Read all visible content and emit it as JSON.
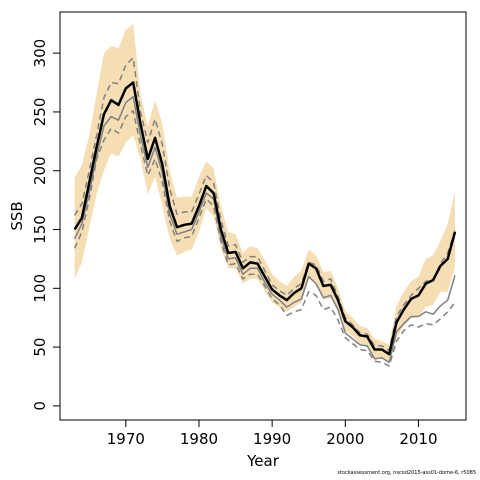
{
  "chart_data": {
    "type": "line",
    "title": "",
    "xlabel": "Year",
    "ylabel": "SSB",
    "xlim": [
      1961,
      2016.5
    ],
    "ylim": [
      -12,
      335
    ],
    "xticks": [
      1970,
      1980,
      1990,
      2000,
      2010
    ],
    "yticks": [
      0,
      50,
      100,
      150,
      200,
      250,
      300
    ],
    "grid": false,
    "colors": {
      "band": "#f5deb3",
      "estimate": "#000000",
      "dashed": "#808080",
      "solid_grey": "#808080"
    },
    "x": [
      1963,
      1964,
      1965,
      1966,
      1967,
      1968,
      1969,
      1970,
      1971,
      1972,
      1973,
      1974,
      1975,
      1976,
      1977,
      1978,
      1979,
      1980,
      1981,
      1982,
      1983,
      1984,
      1985,
      1986,
      1987,
      1988,
      1989,
      1990,
      1991,
      1992,
      1993,
      1994,
      1995,
      1996,
      1997,
      1998,
      1999,
      2000,
      2001,
      2002,
      2003,
      2004,
      2005,
      2006,
      2007,
      2008,
      2009,
      2010,
      2011,
      2012,
      2013,
      2014,
      2015
    ],
    "series": [
      {
        "role": "estimate",
        "values": [
          150,
          160,
          190,
          220,
          248,
          260,
          256,
          270,
          275,
          240,
          210,
          228,
          205,
          170,
          152,
          154,
          155,
          170,
          187,
          181,
          150,
          130,
          131,
          117,
          122,
          121,
          110,
          99,
          94,
          90,
          96,
          100,
          121,
          117,
          102,
          103,
          90,
          72,
          67,
          60,
          59,
          48,
          48,
          44,
          71,
          82,
          91,
          94,
          104,
          107,
          119,
          125,
          148
        ]
      },
      {
        "role": "upper",
        "values": [
          194,
          205,
          230,
          265,
          300,
          306,
          304,
          320,
          325,
          265,
          238,
          260,
          240,
          200,
          177,
          178,
          178,
          195,
          208,
          202,
          170,
          148,
          146,
          130,
          136,
          134,
          124,
          112,
          106,
          102,
          110,
          115,
          133,
          128,
          114,
          115,
          100,
          81,
          75,
          68,
          66,
          57,
          55,
          52,
          85,
          97,
          106,
          110,
          125,
          128,
          140,
          155,
          182
        ]
      },
      {
        "role": "lower",
        "values": [
          108,
          122,
          152,
          180,
          200,
          215,
          212,
          224,
          230,
          210,
          180,
          195,
          170,
          142,
          128,
          131,
          133,
          148,
          168,
          161,
          134,
          117,
          117,
          104,
          108,
          108,
          98,
          88,
          84,
          80,
          84,
          88,
          108,
          106,
          90,
          92,
          80,
          64,
          59,
          53,
          52,
          40,
          41,
          36,
          58,
          68,
          74,
          76,
          84,
          86,
          97,
          97,
          118
        ]
      },
      {
        "role": "dashed-upper",
        "values": [
          162,
          172,
          200,
          230,
          262,
          275,
          274,
          290,
          296,
          250,
          224,
          244,
          222,
          185,
          163,
          165,
          165,
          180,
          196,
          190,
          158,
          136,
          137,
          122,
          127,
          127,
          115,
          103,
          98,
          94,
          100,
          104,
          122,
          120,
          106,
          108,
          93,
          75,
          69,
          62,
          61,
          51,
          51,
          47,
          76,
          86,
          94,
          100,
          106,
          107,
          121,
          130,
          149
        ]
      },
      {
        "role": "dashed-lower",
        "values": [
          134,
          148,
          176,
          210,
          226,
          236,
          232,
          246,
          251,
          222,
          196,
          210,
          190,
          157,
          140,
          143,
          144,
          160,
          176,
          170,
          140,
          120,
          121,
          108,
          112,
          112,
          102,
          91,
          86,
          77,
          80,
          82,
          97,
          94,
          82,
          84,
          73,
          58,
          53,
          48,
          47,
          38,
          37,
          34,
          55,
          64,
          69,
          67,
          70,
          69,
          74,
          80,
          88
        ]
      },
      {
        "role": "solid-grey",
        "values": [
          142,
          155,
          182,
          212,
          238,
          246,
          243,
          258,
          263,
          230,
          203,
          220,
          198,
          163,
          146,
          148,
          150,
          165,
          181,
          176,
          144,
          125,
          126,
          112,
          117,
          117,
          105,
          95,
          90,
          84,
          88,
          91,
          110,
          104,
          92,
          94,
          82,
          62,
          57,
          52,
          51,
          40,
          41,
          37,
          63,
          70,
          76,
          76,
          80,
          78,
          85,
          90,
          111
        ]
      }
    ]
  },
  "footnote": "stockassessment.org, nscod2015-ass01-dome-6, r5085"
}
